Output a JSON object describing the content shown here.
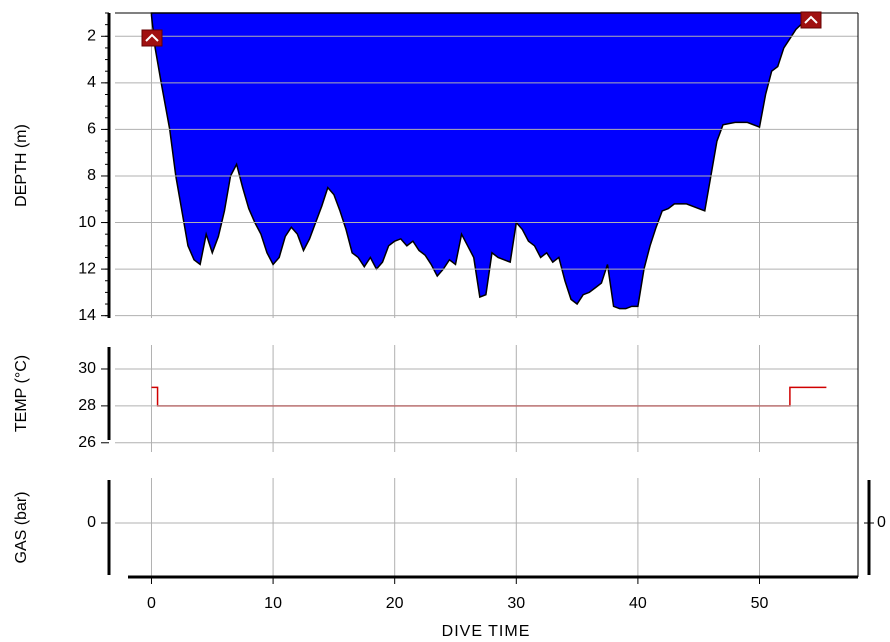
{
  "chart_data": [
    {
      "type": "area",
      "ylabel": "DEPTH (m)",
      "xlim": [
        -3,
        58.1
      ],
      "ylim": [
        1,
        14.1
      ],
      "y_inverted": true,
      "yticks": [
        2,
        4,
        6,
        8,
        10,
        12,
        14
      ],
      "grid": true,
      "series": [
        {
          "color": "#0000ff",
          "x": [
            0,
            0.3,
            0.8,
            1.5,
            2,
            2.5,
            3,
            3.5,
            4,
            4.5,
            5,
            5.5,
            6,
            6.5,
            7,
            7.5,
            8,
            8.5,
            9,
            9.5,
            10,
            10.5,
            11,
            11.5,
            12,
            12.5,
            13,
            13.5,
            14,
            14.5,
            15,
            15.5,
            16,
            16.5,
            17,
            17.5,
            18,
            18.5,
            19,
            19.5,
            20,
            20.5,
            21,
            21.5,
            22,
            22.5,
            23,
            23.5,
            24,
            24.5,
            25,
            25.5,
            26,
            26.5,
            27,
            27.5,
            28,
            28.5,
            29,
            29.5,
            30,
            30.5,
            31,
            31.5,
            32,
            32.5,
            33,
            33.5,
            34,
            34.5,
            35,
            35.5,
            36,
            36.5,
            37,
            37.5,
            38,
            38.5,
            39,
            39.5,
            40,
            40.5,
            41,
            41.5,
            42,
            42.5,
            43,
            44,
            45,
            45.5,
            46,
            46.5,
            47,
            48,
            49,
            50,
            50.5,
            51,
            51.5,
            52,
            53,
            54,
            54.8
          ],
          "values": [
            1.1,
            2.5,
            4,
            6,
            8,
            9.5,
            11,
            11.6,
            11.8,
            10.5,
            11.3,
            10.6,
            9.5,
            8,
            7.5,
            8.5,
            9.4,
            10,
            10.5,
            11.3,
            11.8,
            11.5,
            10.6,
            10.2,
            10.5,
            11.2,
            10.7,
            10,
            9.3,
            8.5,
            8.8,
            9.5,
            10.3,
            11.3,
            11.5,
            11.9,
            11.5,
            12,
            11.7,
            11,
            10.8,
            10.7,
            11,
            10.8,
            11.2,
            11.4,
            11.8,
            12.3,
            12,
            11.6,
            11.8,
            10.5,
            11,
            11.5,
            13.2,
            13.1,
            11.3,
            11.5,
            11.6,
            11.7,
            10,
            10.3,
            10.8,
            11,
            11.5,
            11.3,
            11.7,
            11.5,
            12.5,
            13.3,
            13.5,
            13.1,
            13,
            12.8,
            12.6,
            11.8,
            13.6,
            13.7,
            13.7,
            13.6,
            13.6,
            12,
            11,
            10.2,
            9.5,
            9.4,
            9.2,
            9.2,
            9.4,
            9.5,
            8,
            6.5,
            5.8,
            5.7,
            5.7,
            5.9,
            4.5,
            3.5,
            3.3,
            2.5,
            1.7,
            1.2,
            1.1
          ]
        }
      ]
    },
    {
      "type": "line",
      "ylabel": "TEMP (°C)",
      "xlim": [
        -3,
        58.1
      ],
      "ylim": [
        25.5,
        31.3
      ],
      "yticks": [
        26,
        28,
        30
      ],
      "grid": true,
      "series": [
        {
          "color": "#d00000",
          "x": [
            0,
            0.5,
            0.5,
            52.5,
            52.5,
            55.5
          ],
          "values": [
            29,
            29,
            28,
            28,
            29,
            29
          ]
        }
      ]
    },
    {
      "type": "line",
      "ylabel": "GAS (bar)",
      "xlabel": "DIVE TIME",
      "xlim": [
        -3,
        58.1
      ],
      "ylim": [
        -2.5,
        2.5
      ],
      "yticks": [
        0
      ],
      "y2ticks": [
        0
      ],
      "xticks": [
        0,
        10,
        20,
        30,
        40,
        50
      ],
      "grid": true,
      "series": []
    }
  ]
}
